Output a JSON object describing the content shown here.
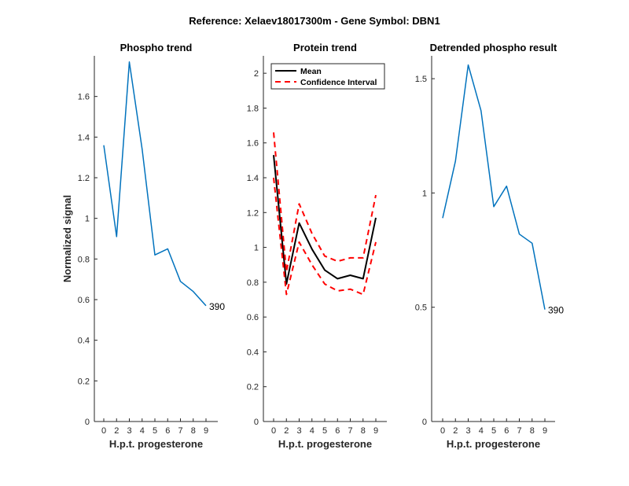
{
  "suptitle": "Reference:  Xelaev18017300m - Gene Symbol:  DBN1",
  "chart_data": [
    {
      "type": "line",
      "title": "Phospho trend",
      "xlabel": "H.p.t. progesterone",
      "ylabel": "Normalized signal",
      "x": [
        0,
        2,
        3,
        4,
        5,
        6,
        7,
        8,
        9
      ],
      "xticklabels": [
        "0",
        "2",
        "3",
        "4",
        "5",
        "6",
        "7",
        "8",
        "9"
      ],
      "ylim": [
        0,
        1.8
      ],
      "yticks": [
        "0",
        "0.2",
        "0.4",
        "0.6",
        "0.8",
        "1",
        "1.2",
        "1.4",
        "1.6"
      ],
      "series": [
        {
          "values": [
            1.36,
            0.91,
            1.77,
            1.34,
            0.82,
            0.85,
            0.69,
            0.64,
            0.57
          ],
          "color": "#0072BD"
        }
      ],
      "annotation": "390",
      "grid": false
    },
    {
      "type": "line",
      "title": "Protein trend",
      "xlabel": "H.p.t. progesterone",
      "ylabel": "",
      "x": [
        0,
        2,
        3,
        4,
        5,
        6,
        7,
        8,
        9
      ],
      "xticklabels": [
        "0",
        "2",
        "3",
        "4",
        "5",
        "6",
        "7",
        "8",
        "9"
      ],
      "ylim": [
        0,
        2.1
      ],
      "yticks": [
        "0",
        "0.2",
        "0.4",
        "0.6",
        "0.8",
        "1",
        "1.2",
        "1.4",
        "1.6",
        "1.8",
        "2"
      ],
      "series": [
        {
          "name": "Mean",
          "values": [
            1.53,
            0.79,
            1.14,
            0.99,
            0.87,
            0.82,
            0.84,
            0.82,
            1.17
          ],
          "color": "#000000",
          "style": "solid"
        },
        {
          "name": "Confidence Interval",
          "values": [
            1.66,
            0.86,
            1.25,
            1.08,
            0.95,
            0.92,
            0.94,
            0.94,
            1.3
          ],
          "color": "#FF0000",
          "style": "dashed"
        },
        {
          "name": "",
          "values": [
            1.4,
            0.73,
            1.03,
            0.9,
            0.79,
            0.75,
            0.76,
            0.73,
            1.03
          ],
          "color": "#FF0000",
          "style": "dashed"
        }
      ],
      "legend": {
        "position": "top-left",
        "entries": [
          {
            "label": "Mean",
            "color": "#000000",
            "style": "solid"
          },
          {
            "label": "Confidence Interval",
            "color": "#FF0000",
            "style": "dashed"
          }
        ]
      },
      "grid": false
    },
    {
      "type": "line",
      "title": "Detrended phospho result",
      "xlabel": "H.p.t. progesterone",
      "ylabel": "",
      "x": [
        0,
        2,
        3,
        4,
        5,
        6,
        7,
        8,
        9
      ],
      "xticklabels": [
        "0",
        "2",
        "3",
        "4",
        "5",
        "6",
        "7",
        "8",
        "9"
      ],
      "ylim": [
        0,
        1.6
      ],
      "yticks": [
        "0",
        "0.5",
        "1",
        "1.5"
      ],
      "series": [
        {
          "values": [
            0.89,
            1.14,
            1.56,
            1.36,
            0.94,
            1.03,
            0.82,
            0.78,
            0.49
          ],
          "color": "#0072BD"
        }
      ],
      "annotation": "390",
      "grid": false
    }
  ]
}
